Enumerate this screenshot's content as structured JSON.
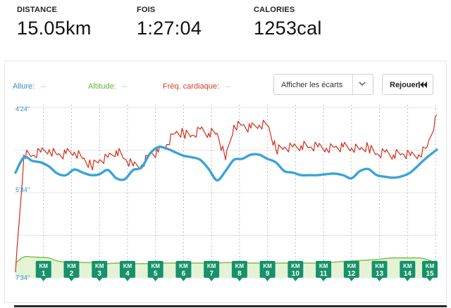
{
  "stats": [
    {
      "label": "DISTANCE",
      "value": "15.05km"
    },
    {
      "label": "FOIS",
      "value": "1:27:04"
    },
    {
      "label": "CALORIES",
      "value": "1253cal"
    }
  ],
  "legend": {
    "pace": {
      "label": "Allure:",
      "value": "--"
    },
    "altitude": {
      "label": "Altitude:",
      "value": "--"
    },
    "heart_rate": {
      "label": "Fréq. cardiaque:",
      "value": "--"
    }
  },
  "controls": {
    "select_label": "Afficher les écarts",
    "replay_label": "Rejouer",
    "chevron_icon": "chevron-down-icon",
    "replay_icon": "rewind-icon"
  },
  "colors": {
    "pace": "#3aa3d8",
    "altitude": "#7cc04f",
    "altitude_fill": "#e4f3d6",
    "heart_rate": "#d62b18",
    "marker": "#17916a"
  },
  "chart_data": {
    "type": "line",
    "y_ticks": [
      "4'24''",
      "5'34''",
      "7'34''"
    ],
    "km_markers": [
      "1",
      "2",
      "3",
      "4",
      "5",
      "6",
      "7",
      "8",
      "9",
      "10",
      "11",
      "12",
      "13",
      "14",
      "15"
    ],
    "marker_prefix": "KM",
    "x": [
      0,
      0.3,
      0.6,
      0.9,
      1.2,
      1.5,
      1.8,
      2.1,
      2.4,
      2.7,
      3.0,
      3.3,
      3.6,
      3.9,
      4.2,
      4.5,
      4.8,
      5.1,
      5.4,
      5.7,
      6.0,
      6.3,
      6.6,
      6.9,
      7.2,
      7.5,
      7.8,
      8.1,
      8.4,
      8.7,
      9.0,
      9.3,
      9.6,
      9.9,
      10.2,
      10.5,
      10.8,
      11.1,
      11.4,
      11.7,
      12.0,
      12.3,
      12.6,
      12.9,
      13.2,
      13.5,
      13.8,
      14.1,
      14.4,
      14.7,
      15.05
    ],
    "series": [
      {
        "key": "pace",
        "values": [
          5.55,
          5.25,
          5.32,
          5.35,
          5.43,
          5.57,
          5.6,
          5.49,
          5.55,
          5.6,
          5.58,
          5.5,
          5.66,
          5.68,
          5.5,
          5.45,
          5.18,
          5.05,
          5.08,
          5.15,
          5.22,
          5.25,
          5.3,
          5.48,
          5.7,
          5.52,
          5.3,
          5.28,
          5.2,
          5.2,
          5.28,
          5.35,
          5.52,
          5.55,
          5.6,
          5.6,
          5.6,
          5.58,
          5.57,
          5.6,
          5.66,
          5.52,
          5.48,
          5.6,
          5.63,
          5.65,
          5.62,
          5.55,
          5.4,
          5.25,
          5.1
        ]
      },
      {
        "key": "heart_rate",
        "values": [
          7.5,
          5.2,
          5.22,
          5.15,
          5.1,
          5.2,
          5.18,
          5.15,
          5.28,
          5.42,
          5.3,
          5.25,
          5.12,
          5.28,
          5.42,
          5.4,
          5.18,
          5.15,
          5.0,
          4.78,
          4.78,
          4.82,
          4.7,
          4.78,
          4.78,
          5.3,
          4.62,
          4.62,
          4.68,
          4.62,
          4.62,
          5.1,
          5.05,
          5.05,
          5.02,
          5.05,
          5.05,
          5.07,
          5.05,
          5.05,
          5.07,
          5.1,
          5.05,
          5.18,
          5.15,
          5.2,
          5.18,
          5.22,
          5.2,
          5.05,
          4.42
        ]
      },
      {
        "key": "altitude",
        "values": [
          7.32,
          7.2,
          7.2,
          7.21,
          7.22,
          7.28,
          7.3,
          7.3,
          7.31,
          7.31,
          7.32,
          7.33,
          7.32,
          7.32,
          7.33,
          7.33,
          7.33,
          7.32,
          7.32,
          7.32,
          7.32,
          7.32,
          7.32,
          7.32,
          7.32,
          7.31,
          7.31,
          7.31,
          7.32,
          7.32,
          7.32,
          7.32,
          7.32,
          7.32,
          7.32,
          7.32,
          7.32,
          7.32,
          7.3,
          7.29,
          7.28,
          7.27,
          7.26,
          7.25,
          7.23,
          7.22,
          7.22,
          7.22,
          7.22,
          7.25,
          7.33
        ]
      }
    ],
    "xlim": [
      0,
      15.05
    ],
    "ylim": [
      4.25,
      7.58
    ],
    "grid": true
  }
}
